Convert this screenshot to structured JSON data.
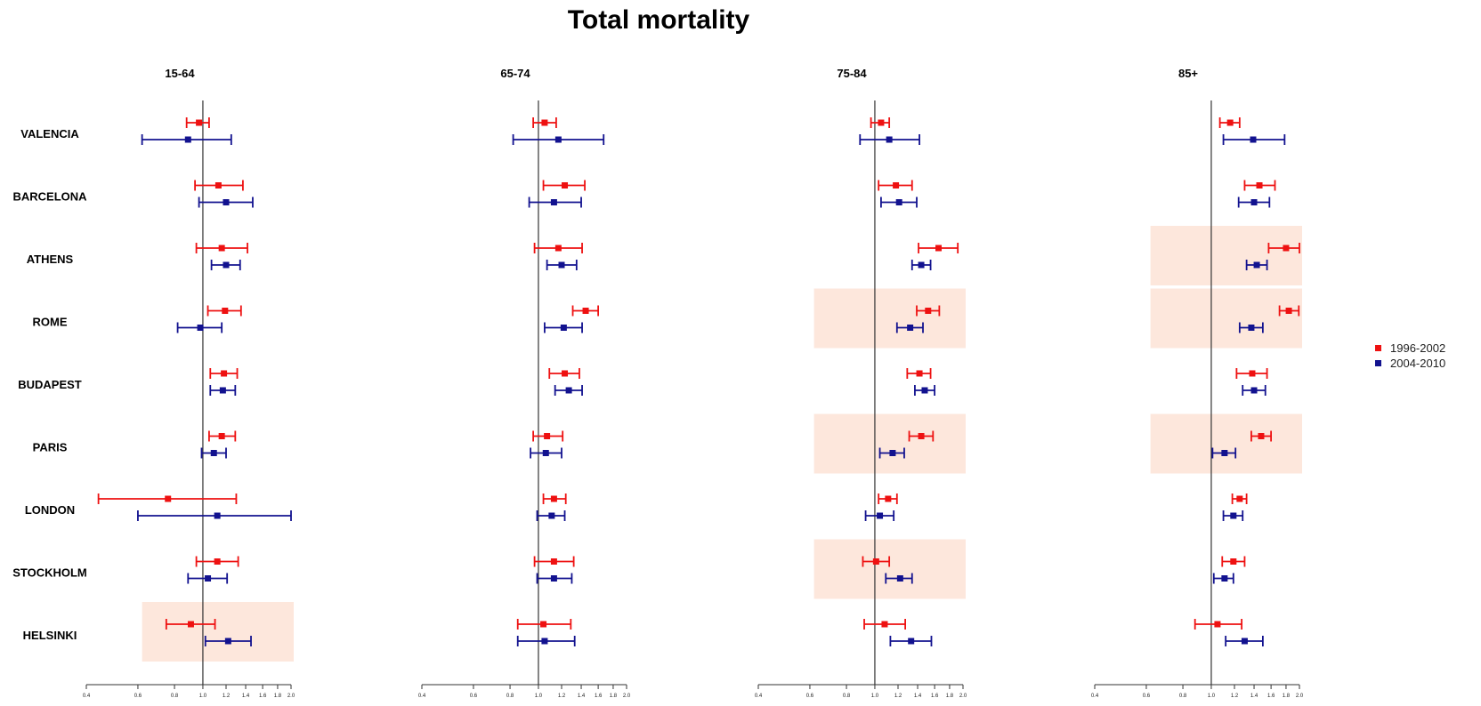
{
  "title": "Total mortality",
  "legend": [
    {
      "label": "1996-2002",
      "color": "#ee1111"
    },
    {
      "label": "2004-2010",
      "color": "#12128f"
    }
  ],
  "chart_data": {
    "type": "scatter",
    "style": "forest-plot",
    "x_scale": "log",
    "xlim": [
      0.4,
      2.0
    ],
    "x_ticks": [
      "0.4",
      "0.6",
      "0.8",
      "1.0",
      "1.2",
      "1.4",
      "1.6",
      "1.8",
      "2.0"
    ],
    "reference_line": 1.0,
    "cities": [
      "VALENCIA",
      "BARCELONA",
      "ATHENS",
      "ROME",
      "BUDAPEST",
      "PARIS",
      "LONDON",
      "STOCKHOLM",
      "HELSINKI"
    ],
    "series_names": [
      "1996-2002",
      "2004-2010"
    ],
    "panels": [
      {
        "title": "15-64",
        "rows": [
          {
            "city": "VALENCIA",
            "highlight": false,
            "p1": [
              0.97,
              0.88,
              1.05
            ],
            "p2": [
              0.89,
              0.62,
              1.25
            ]
          },
          {
            "city": "BARCELONA",
            "highlight": false,
            "p1": [
              1.13,
              0.94,
              1.37
            ],
            "p2": [
              1.2,
              0.97,
              1.48
            ]
          },
          {
            "city": "ATHENS",
            "highlight": false,
            "p1": [
              1.16,
              0.95,
              1.42
            ],
            "p2": [
              1.2,
              1.07,
              1.34
            ]
          },
          {
            "city": "ROME",
            "highlight": false,
            "p1": [
              1.19,
              1.04,
              1.35
            ],
            "p2": [
              0.98,
              0.82,
              1.16
            ]
          },
          {
            "city": "BUDAPEST",
            "highlight": false,
            "p1": [
              1.18,
              1.06,
              1.31
            ],
            "p2": [
              1.17,
              1.06,
              1.29
            ]
          },
          {
            "city": "PARIS",
            "highlight": false,
            "p1": [
              1.16,
              1.05,
              1.29
            ],
            "p2": [
              1.09,
              0.99,
              1.2
            ]
          },
          {
            "city": "LONDON",
            "highlight": false,
            "p1": [
              0.76,
              0.44,
              1.3
            ],
            "p2": [
              1.12,
              0.6,
              2.0
            ]
          },
          {
            "city": "STOCKHOLM",
            "highlight": false,
            "p1": [
              1.12,
              0.95,
              1.32
            ],
            "p2": [
              1.04,
              0.89,
              1.21
            ]
          },
          {
            "city": "HELSINKI",
            "highlight": true,
            "p1": [
              0.91,
              0.75,
              1.1
            ],
            "p2": [
              1.22,
              1.02,
              1.46
            ]
          }
        ]
      },
      {
        "title": "65-74",
        "rows": [
          {
            "city": "VALENCIA",
            "highlight": false,
            "p1": [
              1.05,
              0.96,
              1.15
            ],
            "p2": [
              1.17,
              0.82,
              1.67
            ]
          },
          {
            "city": "BARCELONA",
            "highlight": false,
            "p1": [
              1.23,
              1.04,
              1.44
            ],
            "p2": [
              1.13,
              0.93,
              1.4
            ]
          },
          {
            "city": "ATHENS",
            "highlight": false,
            "p1": [
              1.17,
              0.97,
              1.41
            ],
            "p2": [
              1.2,
              1.07,
              1.35
            ]
          },
          {
            "city": "ROME",
            "highlight": false,
            "p1": [
              1.45,
              1.31,
              1.6
            ],
            "p2": [
              1.22,
              1.05,
              1.41
            ]
          },
          {
            "city": "BUDAPEST",
            "highlight": false,
            "p1": [
              1.23,
              1.09,
              1.38
            ],
            "p2": [
              1.27,
              1.14,
              1.41
            ]
          },
          {
            "city": "PARIS",
            "highlight": false,
            "p1": [
              1.07,
              0.96,
              1.21
            ],
            "p2": [
              1.06,
              0.94,
              1.2
            ]
          },
          {
            "city": "LONDON",
            "highlight": false,
            "p1": [
              1.13,
              1.04,
              1.24
            ],
            "p2": [
              1.11,
              0.99,
              1.23
            ]
          },
          {
            "city": "STOCKHOLM",
            "highlight": false,
            "p1": [
              1.13,
              0.97,
              1.32
            ],
            "p2": [
              1.13,
              0.99,
              1.3
            ]
          },
          {
            "city": "HELSINKI",
            "highlight": false,
            "p1": [
              1.04,
              0.85,
              1.29
            ],
            "p2": [
              1.05,
              0.85,
              1.33
            ]
          }
        ]
      },
      {
        "title": "75-84",
        "rows": [
          {
            "city": "VALENCIA",
            "highlight": false,
            "p1": [
              1.05,
              0.97,
              1.12
            ],
            "p2": [
              1.12,
              0.89,
              1.42
            ]
          },
          {
            "city": "BARCELONA",
            "highlight": false,
            "p1": [
              1.18,
              1.03,
              1.34
            ],
            "p2": [
              1.21,
              1.05,
              1.39
            ]
          },
          {
            "city": "ATHENS",
            "highlight": false,
            "p1": [
              1.65,
              1.41,
              1.92
            ],
            "p2": [
              1.44,
              1.34,
              1.55
            ]
          },
          {
            "city": "ROME",
            "highlight": true,
            "p1": [
              1.52,
              1.39,
              1.66
            ],
            "p2": [
              1.32,
              1.19,
              1.46
            ]
          },
          {
            "city": "BUDAPEST",
            "highlight": false,
            "p1": [
              1.42,
              1.29,
              1.55
            ],
            "p2": [
              1.48,
              1.37,
              1.6
            ]
          },
          {
            "city": "PARIS",
            "highlight": true,
            "p1": [
              1.44,
              1.31,
              1.58
            ],
            "p2": [
              1.15,
              1.04,
              1.26
            ]
          },
          {
            "city": "LONDON",
            "highlight": false,
            "p1": [
              1.11,
              1.03,
              1.19
            ],
            "p2": [
              1.04,
              0.93,
              1.16
            ]
          },
          {
            "city": "STOCKHOLM",
            "highlight": true,
            "p1": [
              1.01,
              0.91,
              1.12
            ],
            "p2": [
              1.22,
              1.09,
              1.34
            ]
          },
          {
            "city": "HELSINKI",
            "highlight": false,
            "p1": [
              1.08,
              0.92,
              1.27
            ],
            "p2": [
              1.33,
              1.13,
              1.56
            ]
          }
        ]
      },
      {
        "title": "85+",
        "rows": [
          {
            "city": "VALENCIA",
            "highlight": false,
            "p1": [
              1.16,
              1.07,
              1.25
            ],
            "p2": [
              1.39,
              1.1,
              1.78
            ]
          },
          {
            "city": "BARCELONA",
            "highlight": false,
            "p1": [
              1.46,
              1.3,
              1.65
            ],
            "p2": [
              1.4,
              1.24,
              1.58
            ]
          },
          {
            "city": "ATHENS",
            "highlight": true,
            "p1": [
              1.8,
              1.57,
              2.05
            ],
            "p2": [
              1.43,
              1.32,
              1.55
            ]
          },
          {
            "city": "ROME",
            "highlight": true,
            "p1": [
              1.84,
              1.71,
              1.99
            ],
            "p2": [
              1.37,
              1.25,
              1.5
            ]
          },
          {
            "city": "BUDAPEST",
            "highlight": false,
            "p1": [
              1.38,
              1.22,
              1.55
            ],
            "p2": [
              1.4,
              1.28,
              1.53
            ]
          },
          {
            "city": "PARIS",
            "highlight": true,
            "p1": [
              1.48,
              1.37,
              1.6
            ],
            "p2": [
              1.11,
              1.01,
              1.21
            ]
          },
          {
            "city": "LONDON",
            "highlight": false,
            "p1": [
              1.25,
              1.18,
              1.32
            ],
            "p2": [
              1.19,
              1.1,
              1.28
            ]
          },
          {
            "city": "STOCKHOLM",
            "highlight": false,
            "p1": [
              1.19,
              1.09,
              1.3
            ],
            "p2": [
              1.11,
              1.02,
              1.19
            ]
          },
          {
            "city": "HELSINKI",
            "highlight": false,
            "p1": [
              1.05,
              0.88,
              1.27
            ],
            "p2": [
              1.3,
              1.12,
              1.5
            ]
          }
        ]
      }
    ]
  }
}
